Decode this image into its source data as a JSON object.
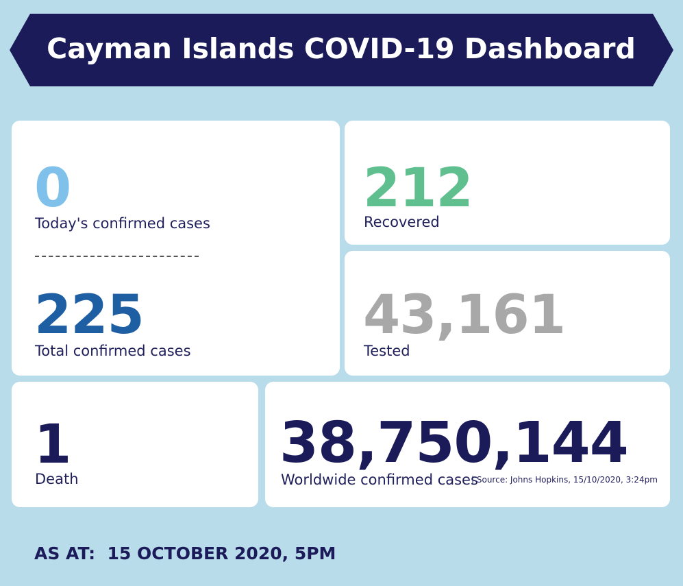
{
  "header": {
    "title": "Cayman Islands COVID-19 Dashboard"
  },
  "cards": [
    {
      "value": "0",
      "label": "Today's confirmed cases"
    },
    {
      "value": "225",
      "label": "Total confirmed cases"
    },
    {
      "value": "212",
      "label": "Recovered"
    },
    {
      "value": "43,161",
      "label": "Tested"
    },
    {
      "value": "1",
      "label": "Death"
    },
    {
      "value": "38,750,144",
      "label": "Worldwide confirmed cases",
      "source": "| Source: Johns Hopkins, 15/10/2020, 3:24pm"
    }
  ],
  "footer": {
    "as_at": "AS AT:  15 OCTOBER 2020, 5PM"
  }
}
